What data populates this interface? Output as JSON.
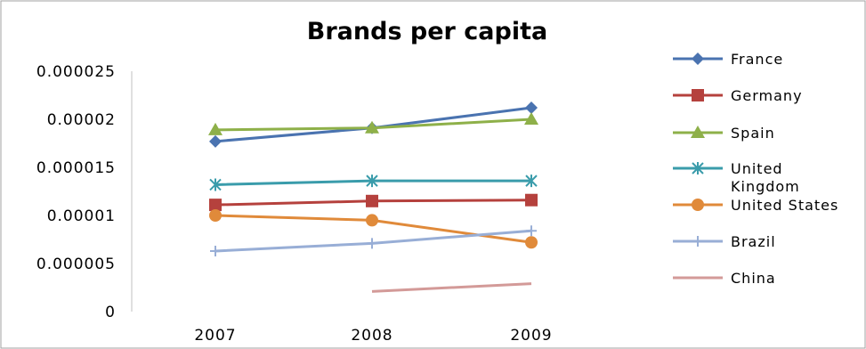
{
  "chart_data": {
    "type": "line",
    "title": "Brands per capita",
    "categories": [
      "2007",
      "2008",
      "2009"
    ],
    "y_tick_labels": [
      "0",
      "0.000005",
      "0.00001",
      "0.000015",
      "0.00002",
      "0.000025"
    ],
    "ylim": [
      0,
      2.5e-05
    ],
    "grid": false,
    "legend_position": "right",
    "series": [
      {
        "name": "France",
        "color": "#4A73B0",
        "marker": "diamond",
        "values": [
          1.77e-05,
          1.91e-05,
          2.12e-05
        ]
      },
      {
        "name": "Germany",
        "color": "#B5413D",
        "marker": "square",
        "values": [
          1.11e-05,
          1.15e-05,
          1.16e-05
        ]
      },
      {
        "name": "Spain",
        "color": "#8EB049",
        "marker": "triangle",
        "values": [
          1.89e-05,
          1.91e-05,
          2e-05
        ]
      },
      {
        "name": "United Kingdom",
        "color": "#3A9CAB",
        "marker": "asterisk",
        "values": [
          1.32e-05,
          1.36e-05,
          1.36e-05
        ]
      },
      {
        "name": "United States",
        "color": "#E08A3A",
        "marker": "circle",
        "values": [
          1e-05,
          9.5e-06,
          7.2e-06
        ]
      },
      {
        "name": "Brazil",
        "color": "#98AED6",
        "marker": "plus",
        "values": [
          6.3e-06,
          7.1e-06,
          8.4e-06
        ]
      },
      {
        "name": "China",
        "color": "#D39A98",
        "marker": "none",
        "values": [
          null,
          2.1e-06,
          2.9e-06
        ]
      }
    ]
  }
}
